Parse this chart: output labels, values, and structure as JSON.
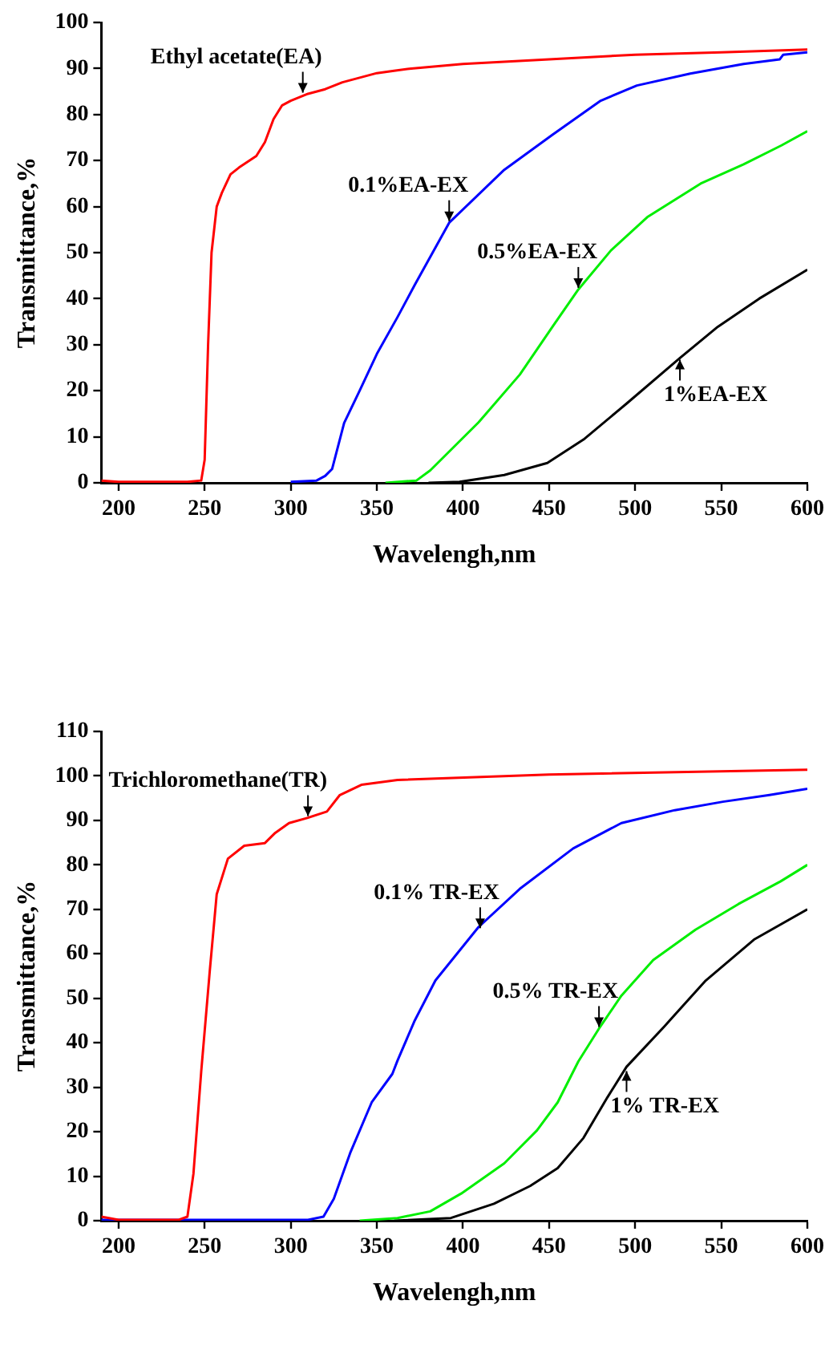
{
  "chart_data": [
    {
      "type": "line",
      "xlabel": "Wavelengh,nm",
      "ylabel": "Transmittance,%",
      "xlim": [
        190,
        600
      ],
      "xticks": [
        200,
        250,
        300,
        350,
        400,
        450,
        500,
        550,
        600
      ],
      "ylim": [
        0,
        100
      ],
      "yticks": [
        0,
        10,
        20,
        30,
        40,
        50,
        60,
        70,
        80,
        90,
        100
      ],
      "grid": false,
      "marker": "none",
      "series": [
        {
          "color": "#ff0000",
          "x": [
            190,
            200,
            240,
            248,
            250,
            252,
            254,
            257,
            260,
            265,
            270,
            280,
            285,
            290,
            295,
            300,
            310,
            320,
            330,
            340,
            350,
            360,
            370,
            400,
            450,
            500,
            550,
            600
          ],
          "values": [
            0.5,
            0.2,
            0.2,
            0.5,
            5,
            30,
            50,
            60,
            63,
            67,
            68.5,
            71,
            74,
            79,
            82,
            83,
            84.5,
            85.5,
            87,
            88,
            89,
            89.5,
            90,
            91,
            92,
            93,
            93.5,
            94.1
          ]
        },
        {
          "color": "#0000ff",
          "x": [
            300,
            315,
            320,
            324,
            331,
            340,
            350,
            362,
            372,
            392,
            424,
            452,
            480,
            501,
            532,
            563,
            584,
            586,
            600
          ],
          "values": [
            0.2,
            0.5,
            1.5,
            3,
            13,
            20,
            28,
            36,
            43,
            56.5,
            68,
            75.6,
            83,
            86.3,
            88.9,
            91,
            92,
            93,
            93.5
          ]
        },
        {
          "color": "#00ee00",
          "x": [
            355,
            373,
            381,
            409,
            433,
            452,
            467,
            486,
            507,
            538,
            563,
            585,
            600
          ],
          "values": [
            0,
            0.5,
            2.7,
            13.1,
            23.5,
            33.9,
            42,
            50.5,
            57.7,
            65,
            69.2,
            73.3,
            76.4
          ]
        },
        {
          "color": "#000000",
          "x": [
            380,
            398,
            424,
            449,
            470,
            495,
            526,
            548,
            572,
            600
          ],
          "values": [
            0,
            0.2,
            1.7,
            4.3,
            9.4,
            17.2,
            27.1,
            33.9,
            40,
            46.3
          ]
        }
      ],
      "annotations": [
        {
          "text": "Ethyl acetate(EA)",
          "x": 307,
          "y": 84.4
        },
        {
          "text": "0.1%EA-EX",
          "x": 392,
          "y": 56.5
        },
        {
          "text": "0.5%EA-EX",
          "x": 467,
          "y": 42
        },
        {
          "text": "1%EA-EX",
          "x": 526,
          "y": 27.1
        }
      ]
    },
    {
      "type": "line",
      "xlabel": "Wavelengh,nm",
      "ylabel": "Transmittance,%",
      "xlim": [
        190,
        600
      ],
      "xticks": [
        200,
        250,
        300,
        350,
        400,
        450,
        500,
        550,
        600
      ],
      "ylim": [
        0,
        110
      ],
      "yticks": [
        0,
        10,
        20,
        30,
        40,
        50,
        60,
        70,
        80,
        90,
        100,
        110
      ],
      "grid": false,
      "marker": "none",
      "series": [
        {
          "color": "#ff0000",
          "x": [
            190,
            200,
            235,
            240,
            243.5,
            248,
            253,
            257,
            263.5,
            273,
            285,
            291,
            299,
            310,
            321,
            328.5,
            341,
            362,
            450,
            600
          ],
          "values": [
            0.9,
            0.2,
            0.2,
            0.9,
            10.6,
            33.5,
            56.3,
            73.4,
            81.4,
            84.3,
            84.9,
            87.2,
            89.4,
            90.6,
            92,
            95.7,
            98,
            99.1,
            100.3,
            101.4
          ]
        },
        {
          "color": "#0000ff",
          "x": [
            190,
            310,
            319,
            325,
            334.5,
            347,
            359,
            362,
            372,
            384,
            409,
            433,
            464,
            492,
            523,
            551,
            578,
            600
          ],
          "values": [
            0.2,
            0.2,
            0.9,
            4.9,
            15.2,
            26.6,
            33,
            36,
            45,
            54,
            66,
            74.6,
            83.7,
            89.4,
            92.3,
            94.2,
            95.7,
            97.1
          ]
        },
        {
          "color": "#00ee00",
          "x": [
            340,
            362,
            381,
            399,
            424,
            443,
            455,
            467,
            479,
            492,
            510.5,
            535,
            560,
            584.5,
            600
          ],
          "values": [
            0,
            0.6,
            2.1,
            6.1,
            12.9,
            20.3,
            26.6,
            35.8,
            43.2,
            50.6,
            58.6,
            65.4,
            71.2,
            76.3,
            80
          ]
        },
        {
          "color": "#000000",
          "x": [
            360,
            393,
            418,
            439,
            455,
            470,
            484,
            495,
            517,
            541,
            569,
            600
          ],
          "values": [
            0,
            0.6,
            3.8,
            7.8,
            11.8,
            18.6,
            27.8,
            34.6,
            43.7,
            54,
            63.2,
            70
          ]
        }
      ],
      "annotations": [
        {
          "text": "Trichloromethane(TR)",
          "x": 310,
          "y": 90.6
        },
        {
          "text": "0.1% TR-EX",
          "x": 410,
          "y": 65.4
        },
        {
          "text": "0.5% TR-EX",
          "x": 479,
          "y": 43.2
        },
        {
          "text": "1% TR-EX",
          "x": 495,
          "y": 34
        }
      ]
    }
  ]
}
